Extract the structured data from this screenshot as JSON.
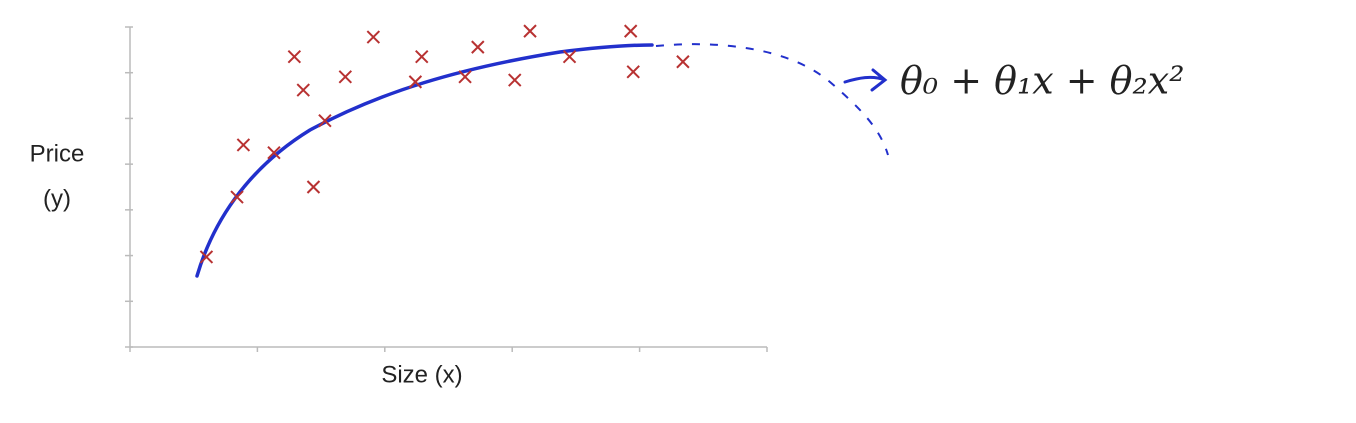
{
  "chart_data": {
    "type": "scatter",
    "xlabel": "Size (x)",
    "ylabel": [
      "Price",
      "(y)"
    ],
    "annotation": "θ₀ + θ₁x + θ₂x²",
    "color": "#b83232",
    "x": [
      0.6,
      0.84,
      0.89,
      1.13,
      1.29,
      1.36,
      1.44,
      1.53,
      1.69,
      1.91,
      2.24,
      2.29,
      2.63,
      2.73,
      3.02,
      3.14,
      3.45,
      3.93,
      3.95,
      4.34
    ],
    "values": [
      1.97,
      3.28,
      4.42,
      4.25,
      6.35,
      5.62,
      3.5,
      4.95,
      5.91,
      6.78,
      5.8,
      6.35,
      5.91,
      6.56,
      5.84,
      6.91,
      6.35,
      6.91,
      6.02,
      6.24
    ],
    "xlim": [
      0,
      5
    ],
    "xticks": [
      0,
      1,
      2,
      3,
      4,
      5
    ],
    "ylim": [
      0,
      7
    ],
    "yticks": [
      0,
      1,
      2,
      3,
      4,
      5,
      6,
      7
    ]
  }
}
